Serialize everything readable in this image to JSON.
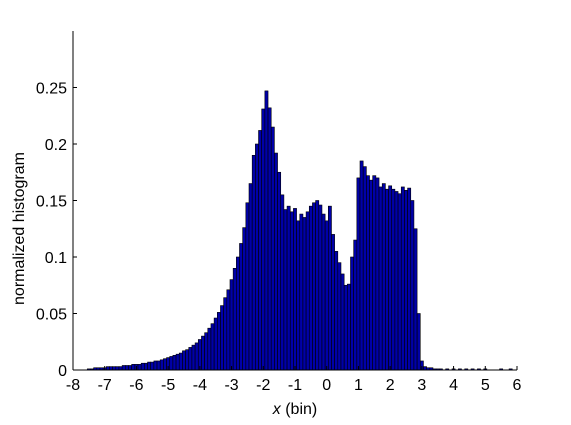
{
  "chart_data": {
    "type": "bar",
    "title": "",
    "xlabel_var": "x",
    "xlabel_rest": " (bin)",
    "ylabel": "normalized histogram",
    "xlim": [
      -8,
      6
    ],
    "ylim": [
      0,
      0.3
    ],
    "xticks": [
      "-8",
      "-7",
      "-6",
      "-5",
      "-4",
      "-3",
      "-2",
      "-1",
      "0",
      "1",
      "2",
      "3",
      "4",
      "5",
      "6"
    ],
    "yticks": [
      "0",
      "0.05",
      "0.1",
      "0.15",
      "0.2",
      "0.25"
    ],
    "bin_width": 0.1,
    "bar_color": "#0000a8",
    "edge_color": "#000000",
    "grid": false,
    "legend": "none",
    "bins": [
      [
        -7.5,
        0.001
      ],
      [
        -7.4,
        0.001
      ],
      [
        -7.3,
        0.002
      ],
      [
        -7.2,
        0.002
      ],
      [
        -7.1,
        0.002
      ],
      [
        -7.0,
        0.002
      ],
      [
        -6.9,
        0.003
      ],
      [
        -6.8,
        0.003
      ],
      [
        -6.7,
        0.003
      ],
      [
        -6.6,
        0.003
      ],
      [
        -6.5,
        0.003
      ],
      [
        -6.4,
        0.004
      ],
      [
        -6.3,
        0.004
      ],
      [
        -6.2,
        0.004
      ],
      [
        -6.1,
        0.005
      ],
      [
        -6.0,
        0.005
      ],
      [
        -5.9,
        0.005
      ],
      [
        -5.8,
        0.006
      ],
      [
        -5.7,
        0.006
      ],
      [
        -5.6,
        0.007
      ],
      [
        -5.5,
        0.007
      ],
      [
        -5.4,
        0.008
      ],
      [
        -5.3,
        0.008
      ],
      [
        -5.2,
        0.009
      ],
      [
        -5.1,
        0.01
      ],
      [
        -5.0,
        0.011
      ],
      [
        -4.9,
        0.012
      ],
      [
        -4.8,
        0.013
      ],
      [
        -4.7,
        0.014
      ],
      [
        -4.6,
        0.015
      ],
      [
        -4.5,
        0.017
      ],
      [
        -4.4,
        0.018
      ],
      [
        -4.3,
        0.02
      ],
      [
        -4.2,
        0.022
      ],
      [
        -4.1,
        0.024
      ],
      [
        -4.0,
        0.027
      ],
      [
        -3.9,
        0.03
      ],
      [
        -3.8,
        0.033
      ],
      [
        -3.7,
        0.037
      ],
      [
        -3.6,
        0.041
      ],
      [
        -3.5,
        0.046
      ],
      [
        -3.4,
        0.051
      ],
      [
        -3.3,
        0.057
      ],
      [
        -3.2,
        0.064
      ],
      [
        -3.1,
        0.071
      ],
      [
        -3.0,
        0.08
      ],
      [
        -2.9,
        0.09
      ],
      [
        -2.8,
        0.1
      ],
      [
        -2.7,
        0.112
      ],
      [
        -2.6,
        0.126
      ],
      [
        -2.5,
        0.148
      ],
      [
        -2.4,
        0.165
      ],
      [
        -2.3,
        0.19
      ],
      [
        -2.2,
        0.2
      ],
      [
        -2.1,
        0.212
      ],
      [
        -2.0,
        0.231
      ],
      [
        -1.9,
        0.247
      ],
      [
        -1.8,
        0.232
      ],
      [
        -1.7,
        0.215
      ],
      [
        -1.6,
        0.192
      ],
      [
        -1.5,
        0.175
      ],
      [
        -1.4,
        0.155
      ],
      [
        -1.3,
        0.142
      ],
      [
        -1.2,
        0.145
      ],
      [
        -1.1,
        0.14
      ],
      [
        -1.0,
        0.143
      ],
      [
        -0.9,
        0.132
      ],
      [
        -0.8,
        0.138
      ],
      [
        -0.7,
        0.135
      ],
      [
        -0.6,
        0.14
      ],
      [
        -0.5,
        0.145
      ],
      [
        -0.4,
        0.148
      ],
      [
        -0.3,
        0.15
      ],
      [
        -0.2,
        0.146
      ],
      [
        -0.1,
        0.138
      ],
      [
        0.0,
        0.132
      ],
      [
        0.1,
        0.145
      ],
      [
        0.2,
        0.12
      ],
      [
        0.3,
        0.105
      ],
      [
        0.4,
        0.095
      ],
      [
        0.5,
        0.085
      ],
      [
        0.6,
        0.075
      ],
      [
        0.7,
        0.076
      ],
      [
        0.8,
        0.1
      ],
      [
        0.9,
        0.115
      ],
      [
        1.0,
        0.17
      ],
      [
        1.1,
        0.185
      ],
      [
        1.2,
        0.18
      ],
      [
        1.3,
        0.172
      ],
      [
        1.4,
        0.168
      ],
      [
        1.5,
        0.172
      ],
      [
        1.6,
        0.17
      ],
      [
        1.7,
        0.162
      ],
      [
        1.8,
        0.165
      ],
      [
        1.9,
        0.16
      ],
      [
        2.0,
        0.163
      ],
      [
        2.1,
        0.16
      ],
      [
        2.2,
        0.158
      ],
      [
        2.3,
        0.156
      ],
      [
        2.4,
        0.162
      ],
      [
        2.5,
        0.159
      ],
      [
        2.6,
        0.161
      ],
      [
        2.7,
        0.15
      ],
      [
        2.8,
        0.125
      ],
      [
        2.9,
        0.05
      ],
      [
        3.0,
        0.008
      ],
      [
        3.1,
        0.003
      ],
      [
        3.2,
        0.002
      ],
      [
        3.3,
        0.002
      ],
      [
        3.4,
        0.001
      ],
      [
        3.5,
        0.001
      ],
      [
        3.6,
        0.001
      ],
      [
        3.8,
        0.001
      ],
      [
        4.0,
        0.001
      ],
      [
        4.2,
        0.001
      ],
      [
        4.4,
        0.001
      ],
      [
        4.6,
        0.001
      ],
      [
        4.8,
        0.001
      ],
      [
        5.0,
        0.001
      ],
      [
        5.5,
        0.001
      ],
      [
        5.8,
        0.001
      ]
    ]
  }
}
